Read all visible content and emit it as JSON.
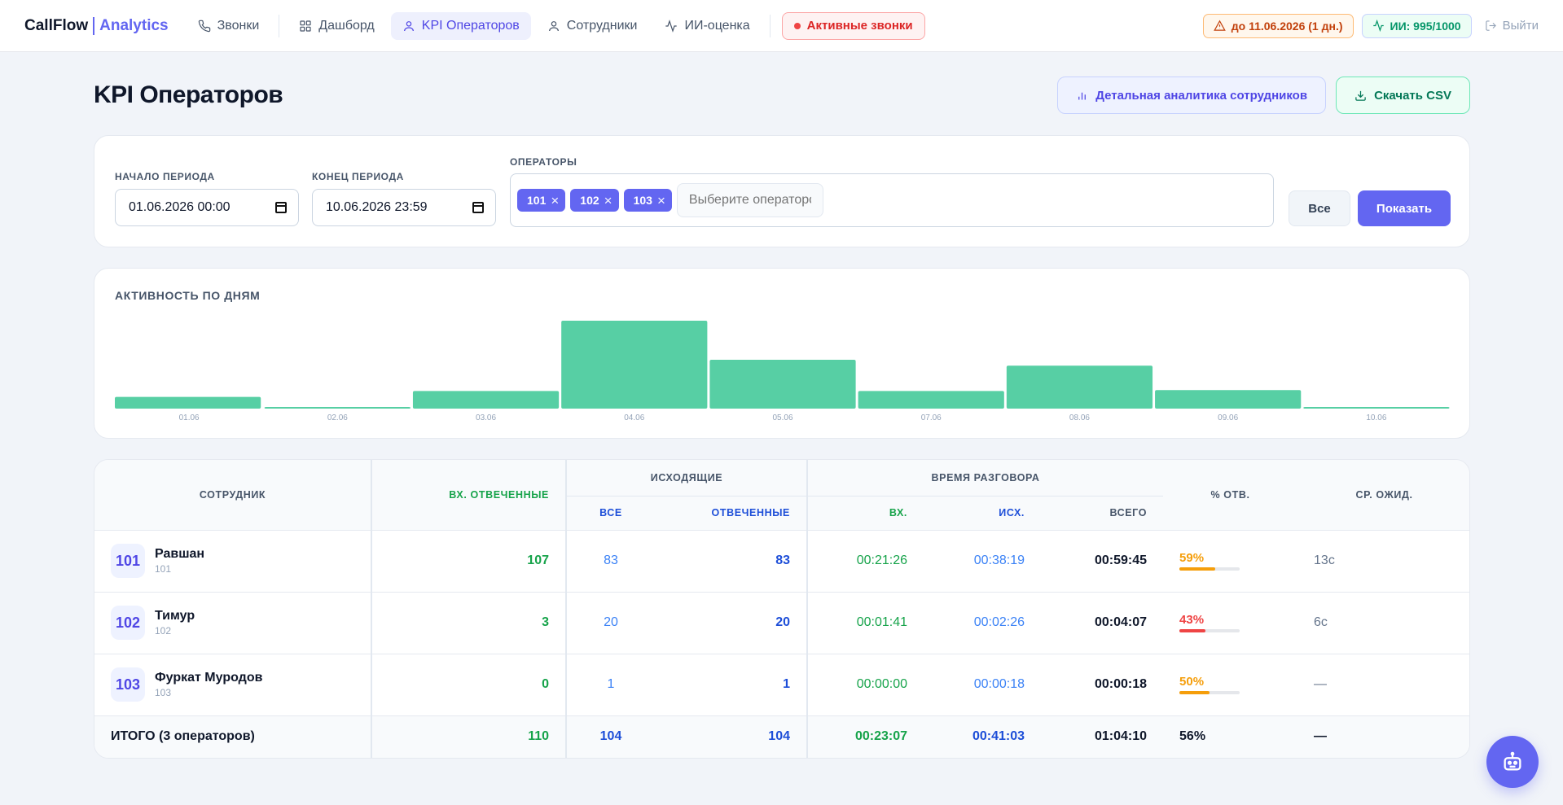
{
  "brand": {
    "name": "CallFlow",
    "accent": "Analytics"
  },
  "nav": [
    {
      "label": "Звонки",
      "icon": "phone-icon"
    },
    {
      "label": "Дашборд",
      "icon": "grid-icon"
    },
    {
      "label": "KPI Операторов",
      "icon": "user-icon",
      "active": true
    },
    {
      "label": "Сотрудники",
      "icon": "user-icon"
    },
    {
      "label": "ИИ-оценка",
      "icon": "activity-icon"
    }
  ],
  "live_calls": "Активные звонки",
  "license": "до 11.06.2026 (1 дн.)",
  "ai_quota": "ИИ: 995/1000",
  "logout": "Выйти",
  "page": {
    "title": "KPI Операторов",
    "detail_btn": "Детальная аналитика сотрудников",
    "csv_btn": "Скачать CSV"
  },
  "filters": {
    "start_label": "Начало периода",
    "start_value": "01.06.2026 00:00",
    "end_label": "Конец периода",
    "end_value": "10.06.2026 23:59",
    "operators_label": "Операторы",
    "chips": [
      "101",
      "102",
      "103"
    ],
    "search_placeholder": "Выберите операторов",
    "all_btn": "Все",
    "show_btn": "Показать"
  },
  "chart_data": {
    "type": "bar",
    "title": "АКТИВНОСТЬ ПО ДНЯМ",
    "categories": [
      "01.06",
      "02.06",
      "03.06",
      "04.06",
      "05.06",
      "07.06",
      "08.06",
      "09.06",
      "10.06"
    ],
    "values": [
      12,
      1,
      18,
      90,
      50,
      18,
      44,
      19,
      1
    ],
    "ylim": [
      0,
      90
    ],
    "color": "#57cfa4"
  },
  "table": {
    "headers": {
      "employee": "Сотрудник",
      "in_answered": "Вх. отвеченные",
      "outgoing": "Исходящие",
      "out_all": "Все",
      "out_answered": "Отвеченные",
      "talk_time": "Время разговора",
      "talk_in": "Вх.",
      "talk_out": "Исх.",
      "talk_total": "Всего",
      "pct": "% отв.",
      "avg_wait": "Ср. ожид."
    },
    "rows": [
      {
        "ext": "101",
        "name": "Равшан",
        "sub": "101",
        "in_answered": "107",
        "out_all": "83",
        "out_answered": "83",
        "talk_in": "00:21:26",
        "talk_out": "00:38:19",
        "talk_total": "00:59:45",
        "pct": "59%",
        "pct_value": 59,
        "pct_color": "#f59e0b",
        "wait": "13с"
      },
      {
        "ext": "102",
        "name": "Тимур",
        "sub": "102",
        "in_answered": "3",
        "out_all": "20",
        "out_answered": "20",
        "talk_in": "00:01:41",
        "talk_out": "00:02:26",
        "talk_total": "00:04:07",
        "pct": "43%",
        "pct_value": 43,
        "pct_color": "#ef4444",
        "wait": "6с"
      },
      {
        "ext": "103",
        "name": "Фуркат Муродов",
        "sub": "103",
        "in_answered": "0",
        "out_all": "1",
        "out_answered": "1",
        "talk_in": "00:00:00",
        "talk_out": "00:00:18",
        "talk_total": "00:00:18",
        "pct": "50%",
        "pct_value": 50,
        "pct_color": "#f59e0b",
        "wait": "—"
      }
    ],
    "total": {
      "label": "ИТОГО (3 операторов)",
      "in_answered": "110",
      "out_all": "104",
      "out_answered": "104",
      "talk_in": "00:23:07",
      "talk_out": "00:41:03",
      "talk_total": "01:04:10",
      "pct": "56%",
      "wait": "—"
    }
  }
}
